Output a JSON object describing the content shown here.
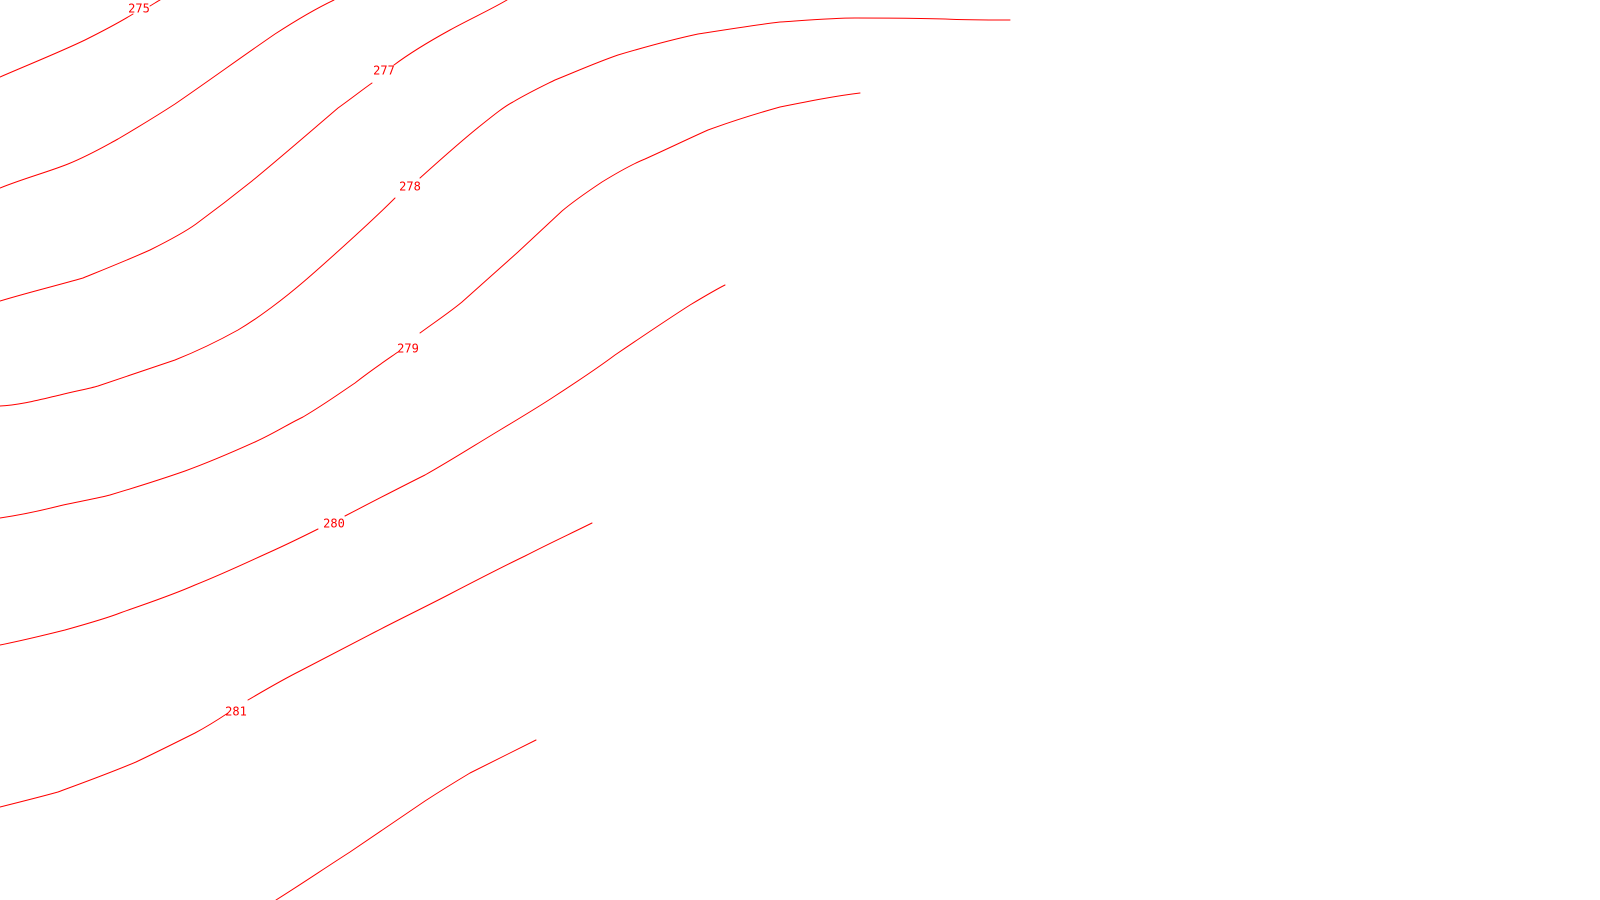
{
  "map": {
    "line_color": "#ff0000",
    "background": "#ffffff",
    "contour_labels": [
      "275",
      "277",
      "278",
      "279",
      "280",
      "281"
    ]
  }
}
